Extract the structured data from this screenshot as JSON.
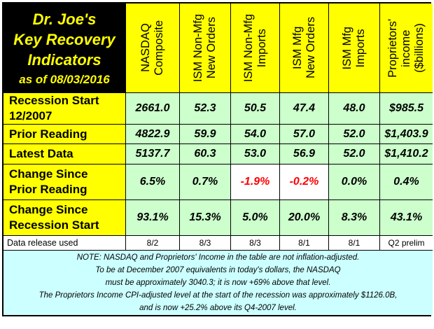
{
  "title": {
    "line1": "Dr. Joe's",
    "line2": "Key Recovery",
    "line3": "Indicators",
    "line4": "as of 08/03/2016"
  },
  "columns": [
    "NASDAQ\nComposite",
    "ISM Non-Mfg\nNew Orders",
    "ISM Non-Mfg\nImports",
    "ISM Mfg\nNew Orders",
    "ISM Mfg\nImports",
    "Proprietors'\nincome\n($billions)"
  ],
  "rows": [
    {
      "label": "Recession Start\n12/2007",
      "values": [
        "2661.0",
        "52.3",
        "50.5",
        "47.4",
        "48.0",
        "$985.5"
      ]
    },
    {
      "label": "Prior Reading",
      "values": [
        "4822.9",
        "59.9",
        "54.0",
        "57.0",
        "52.0",
        "$1,403.9"
      ]
    },
    {
      "label": "Latest Data",
      "values": [
        "5137.7",
        "60.3",
        "53.0",
        "56.9",
        "52.0",
        "$1,410.2"
      ]
    },
    {
      "label": "Change Since\nPrior Reading",
      "values": [
        "6.5%",
        "0.7%",
        "-1.9%",
        "-0.2%",
        "0.0%",
        "0.4%"
      ]
    },
    {
      "label": "Change Since\nRecession Start",
      "values": [
        "93.1%",
        "15.3%",
        "5.0%",
        "20.0%",
        "8.3%",
        "43.1%"
      ]
    }
  ],
  "release": {
    "label": "Data release used",
    "values": [
      "8/2",
      "8/3",
      "8/3",
      "8/1",
      "8/1",
      "Q2 prelim"
    ]
  },
  "notes": [
    "NOTE: NASDAQ and Proprietors' Income in the table are not inflation-adjusted.",
    "To be at December 2007 equivalents in today's dollars, the NASDAQ",
    "must be approximately 3040.3; it is now +69% above that level.",
    "The Proprietors Income CPI-adjusted level at the start of the recession was approximately $1126.0B,",
    "and is now +25.2% above its Q4-2007 level."
  ],
  "colors": {
    "header": "#ffff00",
    "value_bg": "#ccffcc",
    "note_bg": "#ccffff",
    "negative": "#ff0000",
    "title_bg": "#000000"
  }
}
